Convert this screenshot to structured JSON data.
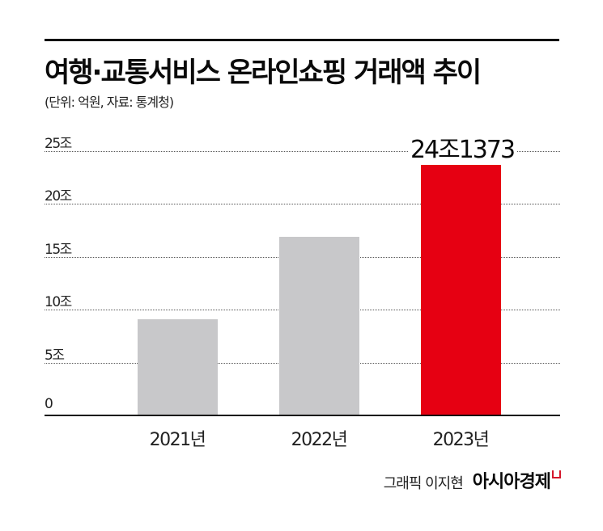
{
  "header": {
    "title": "여행·교통서비스 온라인쇼핑 거래액 추이",
    "subtitle": "(단위: 억원, 자료: 통계청)"
  },
  "colors": {
    "highlight": "#e60012",
    "default_bar": "#c8c8ca",
    "text": "#111111",
    "brand_mark": "#d4172c"
  },
  "chart_data": {
    "type": "bar",
    "title": "여행·교통서비스 온라인쇼핑 거래액 추이",
    "subtitle": "(단위: 억원, 자료: 통계청)",
    "xlabel": "",
    "ylabel": "",
    "categories": [
      "2021년",
      "2022년",
      "2023년"
    ],
    "values": [
      91000,
      169000,
      241373
    ],
    "unit": "억원",
    "ylim": [
      0,
      250000
    ],
    "yticks": [
      0,
      50000,
      100000,
      150000,
      200000,
      250000
    ],
    "ytick_labels": [
      "0",
      "5조",
      "10조",
      "15조",
      "20조",
      "25조"
    ],
    "grid": "horizontal dotted",
    "legend": null,
    "annotations": [
      {
        "category": "2023년",
        "text": "24조1373"
      }
    ],
    "highlight_index": 2
  },
  "bars": [
    {
      "label": "2021년",
      "value_jo": 9.1,
      "highlight": false
    },
    {
      "label": "2022년",
      "value_jo": 16.9,
      "highlight": false
    },
    {
      "label": "2023년",
      "value_jo": 24.1373,
      "highlight": true,
      "annotation": "24조1373"
    }
  ],
  "footer": {
    "credit": "그래픽 이지현",
    "brand": "아시아경제"
  }
}
